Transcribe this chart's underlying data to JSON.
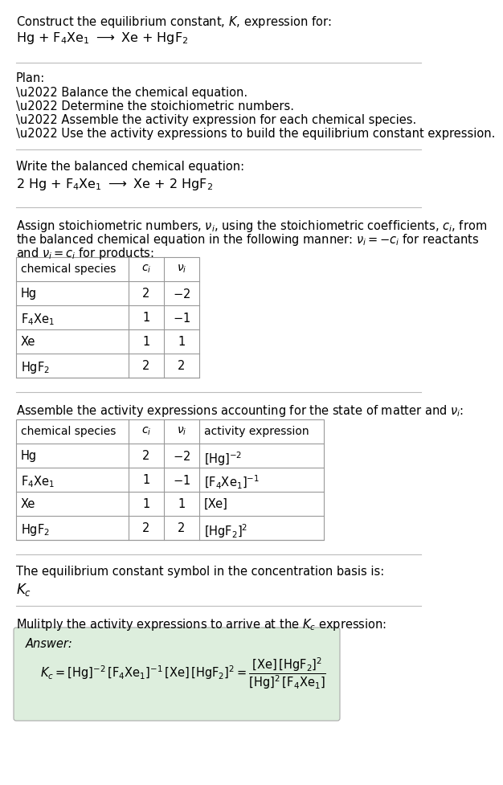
{
  "bg_color": "#ffffff",
  "text_color": "#000000",
  "border_color": "#999999",
  "sep_color": "#bbbbbb",
  "answer_bg": "#ddeedd",
  "sections": {
    "title1": "Construct the equilibrium constant, $K$, expression for:",
    "title2": "Hg + F$_4$Xe$_1$ $\\longrightarrow$ Xe + HgF$_2$",
    "plan_header": "Plan:",
    "bullets": [
      "\\u2022 Balance the chemical equation.",
      "\\u2022 Determine the stoichiometric numbers.",
      "\\u2022 Assemble the activity expression for each chemical species.",
      "\\u2022 Use the activity expressions to build the equilibrium constant expression."
    ],
    "sec2_header": "Write the balanced chemical equation:",
    "sec2_eq": "2 Hg + F$_4$Xe$_1$ $\\longrightarrow$ Xe + 2 HgF$_2$",
    "sec3_line1": "Assign stoichiometric numbers, $\\nu_i$, using the stoichiometric coefficients, $c_i$, from",
    "sec3_line2": "the balanced chemical equation in the following manner: $\\nu_i = -c_i$ for reactants",
    "sec3_line3": "and $\\nu_i = c_i$ for products:",
    "table1_headers": [
      "chemical species",
      "$c_i$",
      "$\\nu_i$"
    ],
    "table1_rows": [
      [
        "Hg",
        "2",
        "$-2$"
      ],
      [
        "F$_4$Xe$_1$",
        "1",
        "$-1$"
      ],
      [
        "Xe",
        "1",
        "1"
      ],
      [
        "HgF$_2$",
        "2",
        "2"
      ]
    ],
    "sec4_header": "Assemble the activity expressions accounting for the state of matter and $\\nu_i$:",
    "table2_headers": [
      "chemical species",
      "$c_i$",
      "$\\nu_i$",
      "activity expression"
    ],
    "table2_rows": [
      [
        "Hg",
        "2",
        "$-2$",
        "[Hg]$^{-2}$"
      ],
      [
        "F$_4$Xe$_1$",
        "1",
        "$-1$",
        "[F$_4$Xe$_1$]$^{-1}$"
      ],
      [
        "Xe",
        "1",
        "1",
        "[Xe]"
      ],
      [
        "HgF$_2$",
        "2",
        "2",
        "[HgF$_2$]$^2$"
      ]
    ],
    "sec5_header": "The equilibrium constant symbol in the concentration basis is:",
    "sec5_symbol": "$K_c$",
    "sec6_header": "Mulitply the activity expressions to arrive at the $K_c$ expression:",
    "answer_label": "Answer:",
    "answer_eq": "$K_c = [\\mathrm{Hg}]^{-2}\\,[\\mathrm{F_4Xe_1}]^{-1}\\,[\\mathrm{Xe}]\\,[\\mathrm{HgF_2}]^2 = \\dfrac{[\\mathrm{Xe}]\\,[\\mathrm{HgF_2}]^2}{[\\mathrm{Hg}]^2\\,[\\mathrm{F_4Xe_1}]}$"
  }
}
